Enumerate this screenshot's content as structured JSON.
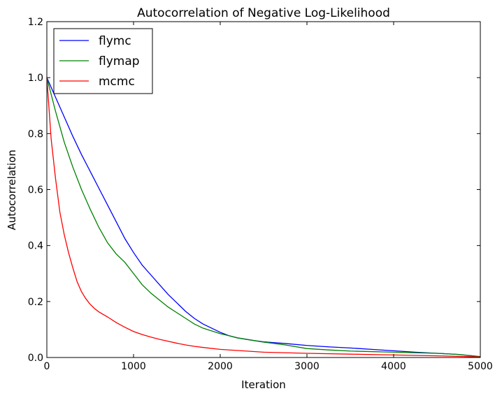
{
  "chart_data": {
    "type": "line",
    "title": "Autocorrelation of Negative Log-Likelihood",
    "xlabel": "Iteration",
    "ylabel": "Autocorrelation",
    "xlim": [
      0,
      5000
    ],
    "ylim": [
      0.0,
      1.2
    ],
    "xticks": [
      0,
      1000,
      2000,
      3000,
      4000,
      5000
    ],
    "xtick_labels": [
      "0",
      "1000",
      "2000",
      "3000",
      "4000",
      "5000"
    ],
    "yticks": [
      0.0,
      0.2,
      0.4,
      0.6,
      0.8,
      1.0,
      1.2
    ],
    "ytick_labels": [
      "0.0",
      "0.2",
      "0.4",
      "0.6",
      "0.8",
      "1.0",
      "1.2"
    ],
    "grid": false,
    "legend_position": "top-left",
    "series": [
      {
        "name": "flymc",
        "color": "#0000ff",
        "x": [
          0,
          100,
          200,
          300,
          400,
          500,
          600,
          700,
          800,
          900,
          1000,
          1100,
          1200,
          1300,
          1400,
          1500,
          1600,
          1700,
          1800,
          1900,
          2000,
          2100,
          2200,
          2300,
          2400,
          2500,
          2750,
          3000,
          3250,
          3500,
          3750,
          4000,
          4250,
          4500,
          4750,
          5000
        ],
        "y": [
          1.0,
          0.93,
          0.86,
          0.79,
          0.725,
          0.665,
          0.605,
          0.545,
          0.485,
          0.425,
          0.375,
          0.33,
          0.295,
          0.26,
          0.225,
          0.195,
          0.165,
          0.14,
          0.12,
          0.105,
          0.09,
          0.078,
          0.07,
          0.065,
          0.06,
          0.056,
          0.05,
          0.043,
          0.038,
          0.034,
          0.029,
          0.024,
          0.019,
          0.015,
          0.011,
          0.003
        ]
      },
      {
        "name": "flymap",
        "color": "#008000",
        "x": [
          0,
          100,
          200,
          300,
          400,
          500,
          600,
          700,
          800,
          900,
          1000,
          1100,
          1200,
          1300,
          1400,
          1500,
          1600,
          1700,
          1800,
          1900,
          2000,
          2100,
          2200,
          2300,
          2400,
          2500,
          2750,
          3000,
          3250,
          3500,
          3750,
          4000,
          4250,
          4500,
          4750,
          5000
        ],
        "y": [
          1.0,
          0.88,
          0.77,
          0.68,
          0.6,
          0.53,
          0.465,
          0.41,
          0.37,
          0.34,
          0.3,
          0.26,
          0.23,
          0.205,
          0.18,
          0.16,
          0.14,
          0.12,
          0.105,
          0.095,
          0.085,
          0.078,
          0.07,
          0.065,
          0.06,
          0.055,
          0.045,
          0.032,
          0.027,
          0.023,
          0.021,
          0.019,
          0.017,
          0.015,
          0.011,
          0.003
        ]
      },
      {
        "name": "mcmc",
        "color": "#ff0000",
        "x": [
          0,
          50,
          100,
          150,
          200,
          250,
          300,
          350,
          400,
          450,
          500,
          550,
          600,
          700,
          800,
          900,
          1000,
          1100,
          1200,
          1300,
          1400,
          1500,
          1600,
          1700,
          1800,
          2000,
          2250,
          2500,
          3000,
          3500,
          4000,
          4500,
          5000
        ],
        "y": [
          1.0,
          0.78,
          0.64,
          0.52,
          0.44,
          0.375,
          0.32,
          0.27,
          0.235,
          0.21,
          0.19,
          0.175,
          0.163,
          0.145,
          0.125,
          0.108,
          0.093,
          0.082,
          0.073,
          0.065,
          0.058,
          0.051,
          0.045,
          0.04,
          0.036,
          0.029,
          0.024,
          0.019,
          0.015,
          0.012,
          0.009,
          0.006,
          0.002
        ]
      }
    ]
  }
}
